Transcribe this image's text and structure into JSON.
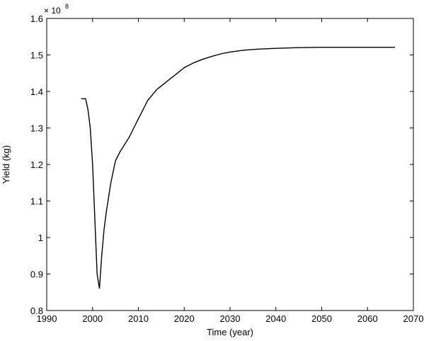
{
  "chart_data": {
    "type": "line",
    "xlabel": "Time (year)",
    "ylabel": "Yield (kg)",
    "y_multiplier": {
      "base": "× 10",
      "exponent": "8"
    },
    "xlim": [
      1990,
      2070
    ],
    "ylim": [
      0.8,
      1.6
    ],
    "x_ticks": [
      1990,
      2000,
      2010,
      2020,
      2030,
      2040,
      2050,
      2060,
      2070
    ],
    "x_tick_labels": [
      "1990",
      "2000",
      "2010",
      "2020",
      "2030",
      "2040",
      "2050",
      "2060",
      "2070"
    ],
    "y_ticks": [
      0.8,
      0.9,
      1.0,
      1.1,
      1.2,
      1.3,
      1.4,
      1.5,
      1.6
    ],
    "y_tick_labels": [
      "0.8",
      "0.9",
      "1",
      "1.1",
      "1.2",
      "1.3",
      "1.4",
      "1.5",
      "1.6"
    ],
    "grid": false,
    "legend": "none",
    "line_color": "#000000",
    "series": [
      {
        "x": [
          1997.5,
          1998.5,
          1999.0,
          1999.5,
          2000.0,
          2000.5,
          2001.0,
          2001.5,
          2002.0,
          2002.5,
          2003.0,
          2004.0,
          2005.0,
          2006.0,
          2007.0,
          2008.0,
          2009.0,
          2010.0,
          2011.0,
          2012.0,
          2013.0,
          2014.0,
          2016.0,
          2018.0,
          2020.0,
          2022.0,
          2024.0,
          2026.0,
          2028.0,
          2030.0,
          2033.0,
          2036.0,
          2040.0,
          2045.0,
          2050.0,
          2055.0,
          2060.0,
          2066.0
        ],
        "y": [
          1.38,
          1.38,
          1.35,
          1.3,
          1.2,
          1.05,
          0.9,
          0.86,
          0.95,
          1.02,
          1.07,
          1.15,
          1.21,
          1.235,
          1.255,
          1.275,
          1.3,
          1.325,
          1.35,
          1.375,
          1.39,
          1.405,
          1.425,
          1.445,
          1.465,
          1.478,
          1.488,
          1.496,
          1.503,
          1.508,
          1.513,
          1.516,
          1.518,
          1.52,
          1.521,
          1.521,
          1.521,
          1.521
        ]
      }
    ]
  }
}
